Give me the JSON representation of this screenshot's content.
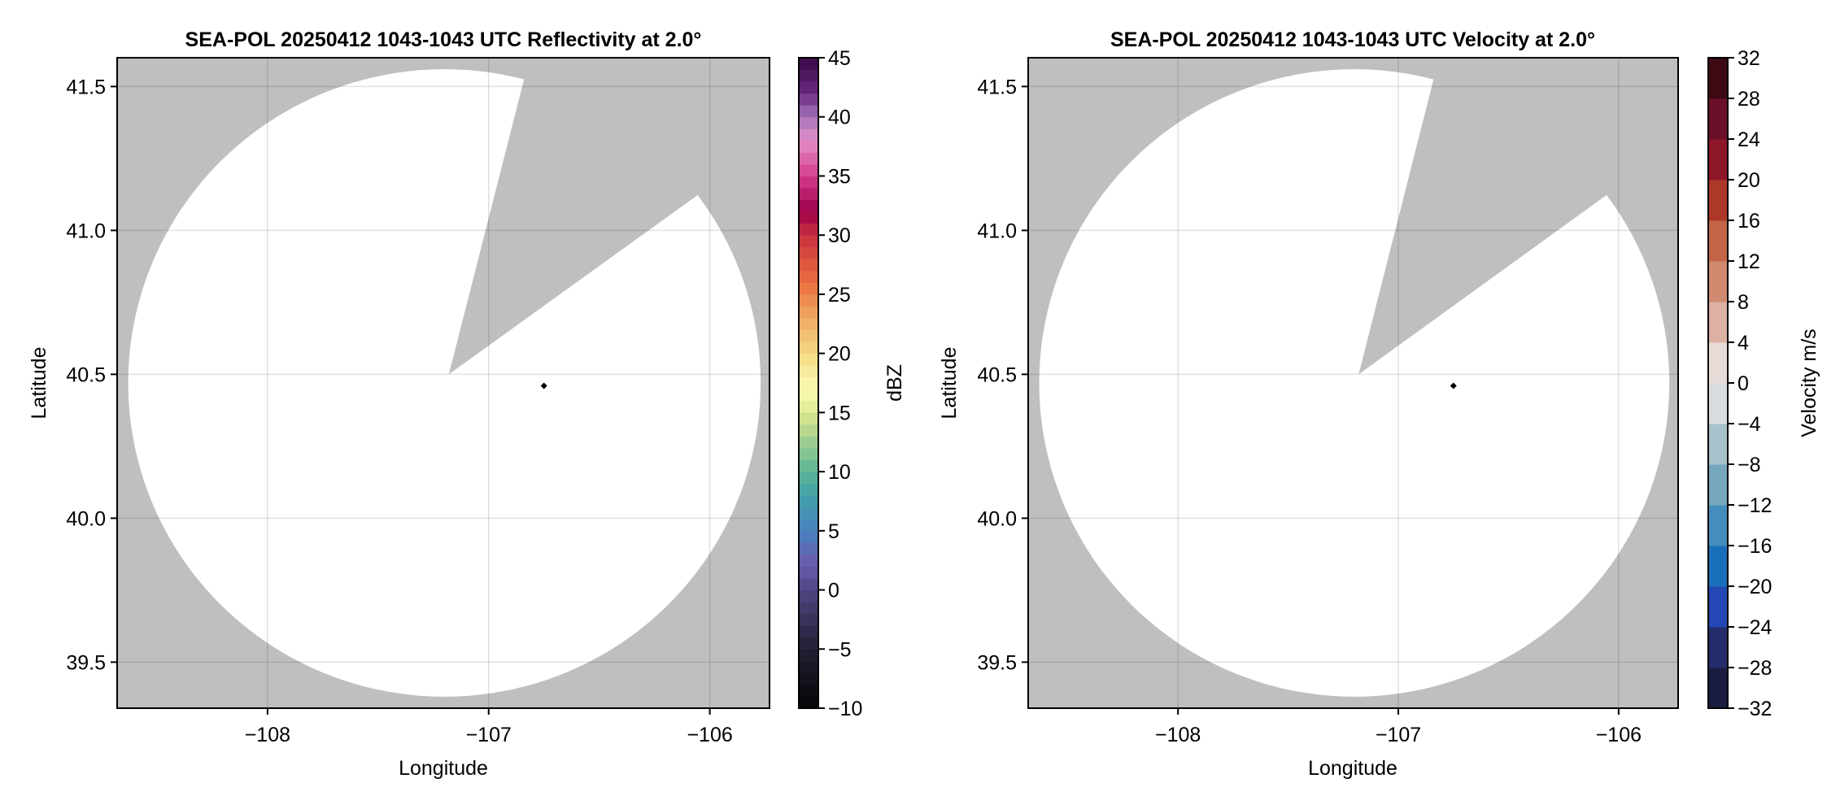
{
  "chart_data": [
    {
      "type": "heatmap",
      "title": "SEA-POL 20250412 1043-1043 UTC Reflectivity at 2.0°",
      "xlabel": "Longitude",
      "ylabel": "Latitude",
      "xlim": [
        -108.68,
        -105.73
      ],
      "ylim": [
        39.34,
        41.6
      ],
      "xticks": [
        -108,
        -107,
        -106
      ],
      "xtick_labels": [
        "−108",
        "−107",
        "−106"
      ],
      "yticks": [
        39.5,
        40.0,
        40.5,
        41.0,
        41.5
      ],
      "ytick_labels": [
        "39.5",
        "40.0",
        "40.5",
        "41.0",
        "41.5"
      ],
      "grid": true,
      "background_color": "#bfbfbf",
      "coverage": {
        "center_lon": -107.2,
        "center_lat": 40.47,
        "radius_lon": 1.43,
        "radius_lat": 1.09,
        "color": "#ffffff"
      },
      "blocked_sector": {
        "apex": [
          -107.18,
          40.5
        ],
        "ray1_end": [
          -106.84,
          41.525
        ],
        "ray2_end": [
          -106.06,
          41.12
        ]
      },
      "marker": {
        "lon": -106.75,
        "lat": 40.46,
        "color": "#000000"
      },
      "colorbar": {
        "label": "dBZ",
        "range": [
          -10,
          45
        ],
        "step": 1,
        "ticks": [
          -10,
          -5,
          0,
          5,
          10,
          15,
          20,
          25,
          30,
          35,
          40,
          45
        ],
        "tick_labels": [
          "−10",
          "−5",
          "0",
          "5",
          "10",
          "15",
          "20",
          "25",
          "30",
          "35",
          "40",
          "45"
        ],
        "color_anchors": [
          [
            -10,
            "#050505"
          ],
          [
            -5,
            "#231f33"
          ],
          [
            0,
            "#4f4583"
          ],
          [
            2,
            "#6a5aaa"
          ],
          [
            5,
            "#4a80c0"
          ],
          [
            8,
            "#42a1a8"
          ],
          [
            10,
            "#5cb496"
          ],
          [
            13,
            "#a8d18e"
          ],
          [
            15,
            "#dde88e"
          ],
          [
            17,
            "#fbfbb5"
          ],
          [
            20,
            "#f3d983"
          ],
          [
            23,
            "#eeaa60"
          ],
          [
            26,
            "#ea6e40"
          ],
          [
            30,
            "#c9313e"
          ],
          [
            32,
            "#9c0048"
          ],
          [
            35,
            "#d43c8e"
          ],
          [
            38,
            "#e390c8"
          ],
          [
            40,
            "#a574b8"
          ],
          [
            42,
            "#6a2a80"
          ],
          [
            45,
            "#3a0845"
          ]
        ]
      }
    },
    {
      "type": "heatmap",
      "title": "SEA-POL 20250412 1043-1043 UTC Velocity at 2.0°",
      "xlabel": "Longitude",
      "ylabel": "Latitude",
      "xlim": [
        -108.68,
        -105.73
      ],
      "ylim": [
        39.34,
        41.6
      ],
      "xticks": [
        -108,
        -107,
        -106
      ],
      "xtick_labels": [
        "−108",
        "−107",
        "−106"
      ],
      "yticks": [
        39.5,
        40.0,
        40.5,
        41.0,
        41.5
      ],
      "ytick_labels": [
        "39.5",
        "40.0",
        "40.5",
        "41.0",
        "41.5"
      ],
      "grid": true,
      "background_color": "#bfbfbf",
      "coverage": {
        "center_lon": -107.2,
        "center_lat": 40.47,
        "radius_lon": 1.43,
        "radius_lat": 1.09,
        "color": "#ffffff"
      },
      "blocked_sector": {
        "apex": [
          -107.18,
          40.5
        ],
        "ray1_end": [
          -106.84,
          41.525
        ],
        "ray2_end": [
          -106.06,
          41.12
        ]
      },
      "marker": {
        "lon": -106.75,
        "lat": 40.46,
        "color": "#000000"
      },
      "colorbar": {
        "label": "Velocity m/s",
        "range": [
          -32,
          32
        ],
        "step": 4,
        "ticks": [
          -32,
          -28,
          -24,
          -20,
          -16,
          -12,
          -8,
          -4,
          0,
          4,
          8,
          12,
          16,
          20,
          24,
          28,
          32
        ],
        "tick_labels": [
          "−32",
          "−28",
          "−24",
          "−20",
          "−16",
          "−12",
          "−8",
          "−4",
          "0",
          "4",
          "8",
          "12",
          "16",
          "20",
          "24",
          "28",
          "32"
        ],
        "colors": [
          "#1a1c40",
          "#252d6e",
          "#2348b5",
          "#1a6fba",
          "#448dbc",
          "#76a8bd",
          "#a8c2cb",
          "#d9dde0",
          "#e8dcd8",
          "#dcb0a2",
          "#cf8a70",
          "#c36546",
          "#ad3828",
          "#8e1629",
          "#6a1028",
          "#3d0a14"
        ]
      }
    }
  ]
}
